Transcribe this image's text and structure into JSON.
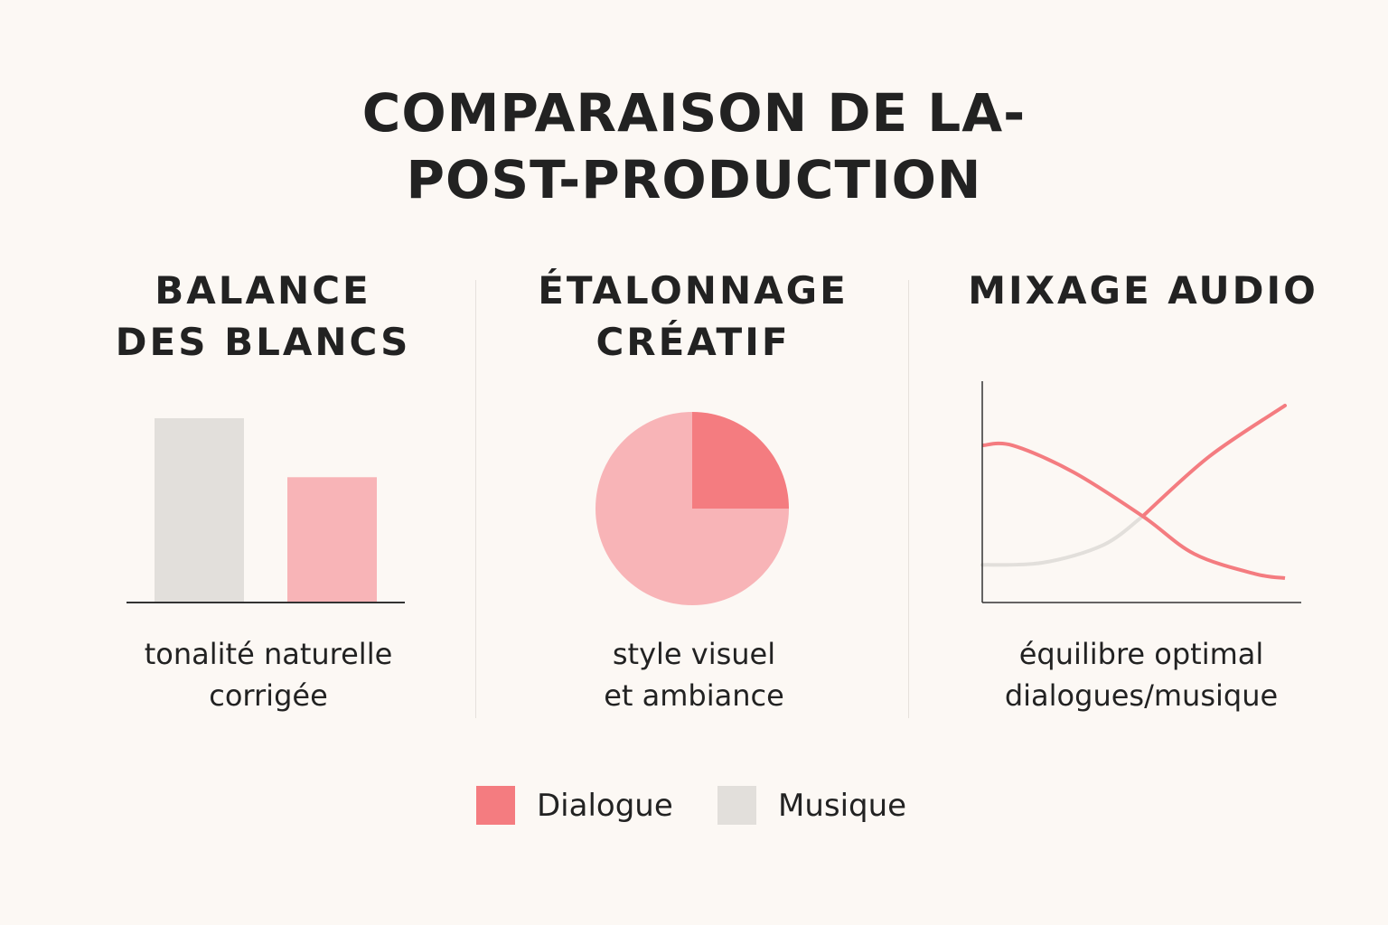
{
  "title": {
    "line1": "COMPARAISON DE LA-",
    "line2": "POST-PRODUCTION"
  },
  "colors": {
    "dialogue": "#f47c80",
    "dialogue_light": "#f8b4b7",
    "musique": "#e2dfdb",
    "axis": "#333333"
  },
  "sections": [
    {
      "heading1": "BALANCE",
      "heading2": "DES BLANCS",
      "caption1": "tonalité naturelle",
      "caption2": "corrigée"
    },
    {
      "heading1": "ÉTALONNAGE",
      "heading2": "CRÉATIF",
      "caption1": "style visuel",
      "caption2": "et ambiance"
    },
    {
      "heading1": "MIXAGE AUDIO",
      "heading2": "",
      "caption1": "équilibre optimal",
      "caption2": "dialogues/musique"
    }
  ],
  "legend": [
    {
      "label": "Dialogue"
    },
    {
      "label": "Musique"
    }
  ],
  "chart_data": [
    {
      "type": "bar",
      "title": "BALANCE DES BLANCS",
      "categories": [
        "Musique",
        "Dialogue"
      ],
      "values": [
        100,
        68
      ],
      "ylim": [
        0,
        100
      ]
    },
    {
      "type": "pie",
      "title": "ÉTALONNAGE CRÉATIF",
      "slices": [
        {
          "name": "Dialogue",
          "value": 25
        },
        {
          "name": "Musique",
          "value": 75
        }
      ]
    },
    {
      "type": "line",
      "title": "MIXAGE AUDIO",
      "xlim": [
        0,
        10
      ],
      "ylim": [
        0,
        10
      ],
      "series": [
        {
          "name": "Dialogue",
          "x": [
            0,
            1,
            3,
            5.3,
            7,
            9,
            10
          ],
          "y": [
            7.1,
            7.1,
            5.9,
            3.9,
            2.2,
            1.3,
            1.1
          ]
        },
        {
          "name": "Musique",
          "x": [
            0,
            2,
            4,
            5.3,
            7.5,
            10
          ],
          "y": [
            1.7,
            1.8,
            2.6,
            3.9,
            6.6,
            8.9
          ],
          "color_change_at_x": 5.3
        }
      ]
    }
  ]
}
